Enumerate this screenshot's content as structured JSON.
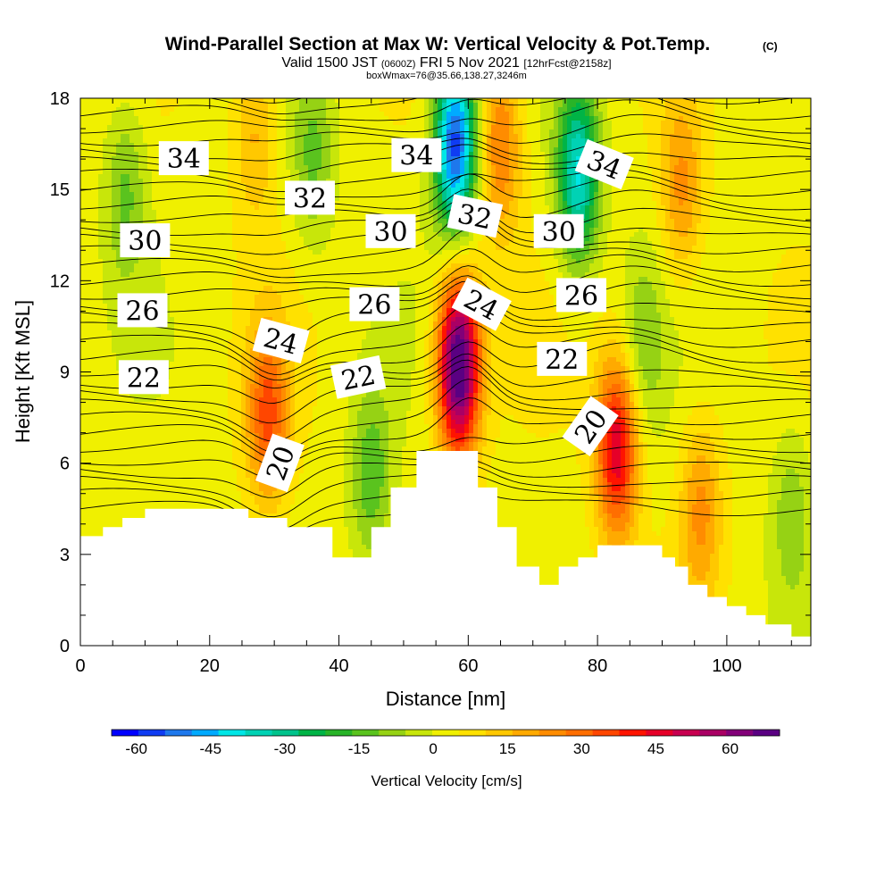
{
  "chart_data": {
    "type": "heatmap",
    "title": "Wind-Parallel Section at Max W: Vertical Velocity & Pot.Temp.",
    "title_mark": "(C)",
    "subtitle_parts": [
      "Valid 1500 JST",
      "(0600Z)",
      "FRI 5 Nov 2021",
      "[12hrFcst@2158z]"
    ],
    "subtitle2": "boxWmax=76@35.66,138.27,3246m",
    "xlabel": "Distance [nm]",
    "ylabel": "Height [Kft MSL]",
    "xlim": [
      0,
      113
    ],
    "ylim": [
      0,
      18
    ],
    "x_ticks": [
      0,
      20,
      40,
      60,
      80,
      100
    ],
    "y_ticks": [
      0,
      3,
      6,
      9,
      12,
      15,
      18
    ],
    "colorbar": {
      "label": "Vertical Velocity [cm/s]",
      "range": [
        -65,
        70
      ],
      "tick_values": [
        -60,
        -45,
        -30,
        -15,
        0,
        15,
        30,
        45,
        60
      ],
      "colors": [
        "#0000ff",
        "#0f3cf2",
        "#1e78ec",
        "#00aaff",
        "#00e6e6",
        "#00d2b4",
        "#00c38c",
        "#00b446",
        "#28b428",
        "#5ac31e",
        "#96d214",
        "#c8e60a",
        "#f0f000",
        "#ffe100",
        "#ffc800",
        "#ffaa00",
        "#ff8c00",
        "#ff6e00",
        "#ff4600",
        "#ff1400",
        "#e60028",
        "#c80050",
        "#aa0064",
        "#820078",
        "#5a0082"
      ]
    },
    "updrafts": [
      {
        "x": 58.5,
        "y": 9.2,
        "w": 72
      },
      {
        "x": 83,
        "y": 6.5,
        "w": 45
      },
      {
        "x": 29,
        "y": 7.6,
        "w": 30
      },
      {
        "x": 65,
        "y": 16.5,
        "w": 25
      },
      {
        "x": 93,
        "y": 15,
        "w": 20
      },
      {
        "x": 96,
        "y": 4.5,
        "w": 20
      },
      {
        "x": 27,
        "y": 17,
        "w": 15
      }
    ],
    "downdrafts": [
      {
        "x": 58,
        "y": 16.5,
        "w": -60
      },
      {
        "x": 77,
        "y": 15.5,
        "w": -42
      },
      {
        "x": 45,
        "y": 5.5,
        "w": -18
      },
      {
        "x": 36,
        "y": 16,
        "w": -15
      },
      {
        "x": 7,
        "y": 15,
        "w": -15
      },
      {
        "x": 87,
        "y": 10,
        "w": -12
      },
      {
        "x": 110,
        "y": 4.5,
        "w": -12
      }
    ],
    "isentrope_labels": [
      {
        "text": "34",
        "x": 16,
        "y": 16.0,
        "angle": 0
      },
      {
        "text": "34",
        "x": 52,
        "y": 16.1,
        "angle": 0
      },
      {
        "text": "34",
        "x": 81,
        "y": 15.8,
        "angle": 22
      },
      {
        "text": "32",
        "x": 35.5,
        "y": 14.7,
        "angle": 0
      },
      {
        "text": "32",
        "x": 61,
        "y": 14.1,
        "angle": 12
      },
      {
        "text": "30",
        "x": 10,
        "y": 13.3,
        "angle": 0
      },
      {
        "text": "30",
        "x": 48,
        "y": 13.6,
        "angle": 0
      },
      {
        "text": "30",
        "x": 74,
        "y": 13.6,
        "angle": 0
      },
      {
        "text": "26",
        "x": 9.6,
        "y": 11.0,
        "angle": 0
      },
      {
        "text": "26",
        "x": 45.5,
        "y": 11.2,
        "angle": 0
      },
      {
        "text": "26",
        "x": 77.5,
        "y": 11.5,
        "angle": 0
      },
      {
        "text": "24",
        "x": 31,
        "y": 10.0,
        "angle": 15
      },
      {
        "text": "24",
        "x": 62,
        "y": 11.2,
        "angle": 28
      },
      {
        "text": "22",
        "x": 9.8,
        "y": 8.8,
        "angle": 0
      },
      {
        "text": "22",
        "x": 43,
        "y": 8.8,
        "angle": -12
      },
      {
        "text": "22",
        "x": 74.5,
        "y": 9.4,
        "angle": 0
      },
      {
        "text": "20",
        "x": 31,
        "y": 6.0,
        "angle": -70
      },
      {
        "text": "20",
        "x": 79,
        "y": 7.2,
        "angle": -55
      }
    ],
    "terrain": [
      [
        0,
        3.6
      ],
      [
        3.5,
        3.6
      ],
      [
        3.5,
        3.9
      ],
      [
        6.5,
        3.9
      ],
      [
        6.5,
        4.2
      ],
      [
        10,
        4.2
      ],
      [
        10,
        4.5
      ],
      [
        26,
        4.5
      ],
      [
        26,
        4.2
      ],
      [
        32,
        4.2
      ],
      [
        32,
        3.9
      ],
      [
        39,
        3.9
      ],
      [
        39,
        2.9
      ],
      [
        45,
        2.9
      ],
      [
        45,
        3.9
      ],
      [
        48,
        3.9
      ],
      [
        48,
        5.2
      ],
      [
        52,
        5.2
      ],
      [
        52,
        6.4
      ],
      [
        61.5,
        6.4
      ],
      [
        61.5,
        5.2
      ],
      [
        64.5,
        5.2
      ],
      [
        64.5,
        3.9
      ],
      [
        67.5,
        3.9
      ],
      [
        67.5,
        2.6
      ],
      [
        71,
        2.6
      ],
      [
        71,
        2.0
      ],
      [
        74,
        2.0
      ],
      [
        74,
        2.6
      ],
      [
        77,
        2.6
      ],
      [
        77,
        2.9
      ],
      [
        80,
        2.9
      ],
      [
        80,
        3.3
      ],
      [
        90,
        3.3
      ],
      [
        90,
        2.9
      ],
      [
        92,
        2.9
      ],
      [
        92,
        2.6
      ],
      [
        94,
        2.6
      ],
      [
        94,
        2.0
      ],
      [
        97,
        2.0
      ],
      [
        97,
        1.6
      ],
      [
        100,
        1.6
      ],
      [
        100,
        1.3
      ],
      [
        103,
        1.3
      ],
      [
        103,
        1.0
      ],
      [
        106,
        1.0
      ],
      [
        106,
        0.7
      ],
      [
        110,
        0.7
      ],
      [
        110,
        0.3
      ],
      [
        113,
        0.3
      ]
    ]
  }
}
